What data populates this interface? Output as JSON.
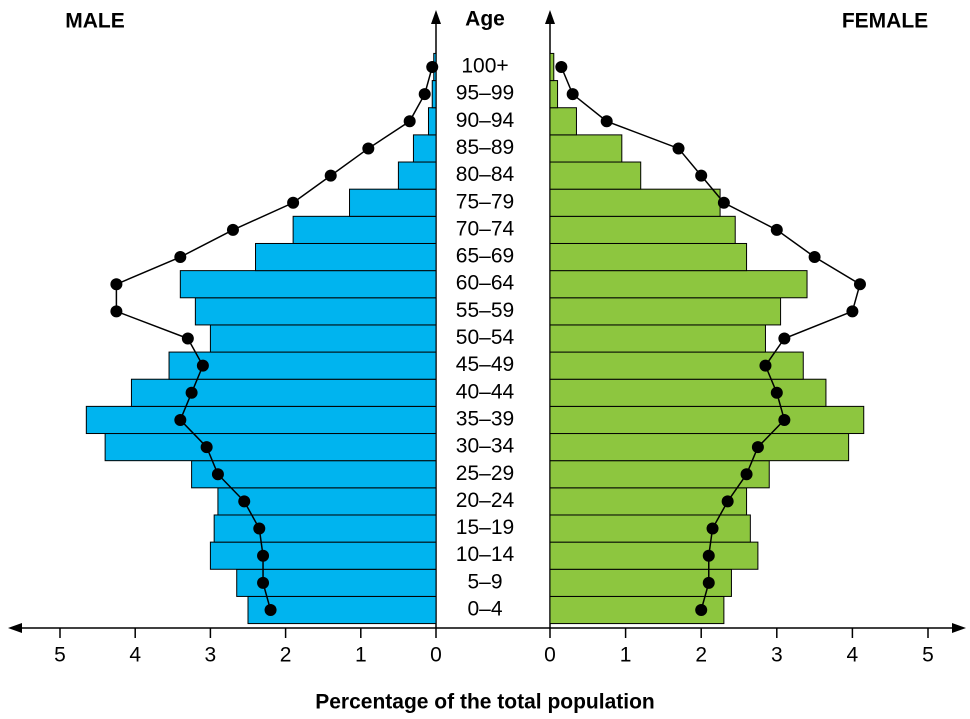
{
  "chart_data": {
    "type": "pyramid",
    "center_label": "Age",
    "xlabel": "Percentage of the total population",
    "categories": [
      "0–4",
      "5–9",
      "10–14",
      "15–19",
      "20–24",
      "25–29",
      "30–34",
      "35–39",
      "40–44",
      "45–49",
      "50–54",
      "55–59",
      "60–64",
      "65–69",
      "70–74",
      "75–79",
      "80–84",
      "85–89",
      "90–94",
      "95–99",
      "100+"
    ],
    "xlim": [
      0,
      5
    ],
    "xticks": [
      0,
      1,
      2,
      3,
      4,
      5
    ],
    "line_color": "#000000",
    "series": [
      {
        "name": "MALE",
        "side": "left",
        "color": "#00b4ef",
        "values": [
          2.5,
          2.65,
          3.0,
          2.95,
          2.9,
          3.25,
          4.4,
          4.65,
          4.05,
          3.55,
          3.0,
          3.2,
          3.4,
          2.4,
          1.9,
          1.15,
          0.5,
          0.3,
          0.1,
          0.05,
          0.03
        ],
        "line_values": [
          2.2,
          2.3,
          2.3,
          2.35,
          2.55,
          2.9,
          3.05,
          3.4,
          3.25,
          3.1,
          3.3,
          4.25,
          4.25,
          3.4,
          2.7,
          1.9,
          1.4,
          0.9,
          0.35,
          0.15,
          0.05
        ]
      },
      {
        "name": "FEMALE",
        "side": "right",
        "color": "#8dc63f",
        "values": [
          2.3,
          2.4,
          2.75,
          2.65,
          2.6,
          2.9,
          3.95,
          4.15,
          3.65,
          3.35,
          2.85,
          3.05,
          3.4,
          2.6,
          2.45,
          2.25,
          1.2,
          0.95,
          0.35,
          0.1,
          0.05
        ],
        "line_values": [
          2.0,
          2.1,
          2.1,
          2.15,
          2.35,
          2.6,
          2.75,
          3.1,
          3.0,
          2.85,
          3.1,
          4.0,
          4.1,
          3.5,
          3.0,
          2.3,
          2.0,
          1.7,
          0.75,
          0.3,
          0.15
        ]
      }
    ]
  }
}
